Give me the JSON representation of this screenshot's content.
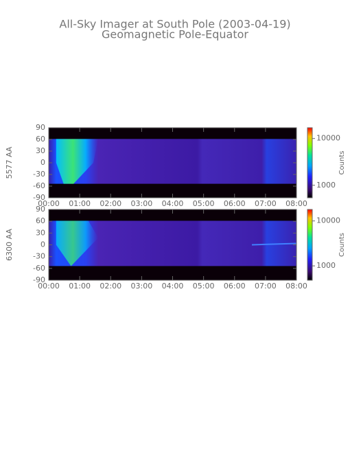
{
  "title": "All-Sky Imager at South Pole (2003-04-19)",
  "subtitle": "Geomagnetic Pole-Equator",
  "chart_data": [
    {
      "type": "heatmap",
      "ylabel": "5577 AA",
      "xlim": [
        0,
        8
      ],
      "xticks": [
        {
          "value": 0,
          "label": "00:00"
        },
        {
          "value": 1,
          "label": "01:00"
        },
        {
          "value": 2,
          "label": "02:00"
        },
        {
          "value": 3,
          "label": "03:00"
        },
        {
          "value": 4,
          "label": "04:00"
        },
        {
          "value": 5,
          "label": "05:00"
        },
        {
          "value": 6,
          "label": "06:00"
        },
        {
          "value": 7,
          "label": "07:00"
        },
        {
          "value": 8,
          "label": "08:00"
        }
      ],
      "ylim": [
        -90,
        90
      ],
      "yticks": [
        -90,
        -60,
        -30,
        0,
        30,
        60,
        90
      ],
      "colorbar": {
        "label": "Counts",
        "log": true,
        "lim": [
          540,
          17000
        ],
        "ticks": [
          1000,
          10000
        ]
      }
    },
    {
      "type": "heatmap",
      "ylabel": "6300 AA",
      "xlim": [
        0,
        8
      ],
      "xticks": [
        {
          "value": 0,
          "label": "00:00"
        },
        {
          "value": 1,
          "label": "01:00"
        },
        {
          "value": 2,
          "label": "02:00"
        },
        {
          "value": 3,
          "label": "03:00"
        },
        {
          "value": 4,
          "label": "04:00"
        },
        {
          "value": 5,
          "label": "05:00"
        },
        {
          "value": 6,
          "label": "06:00"
        },
        {
          "value": 7,
          "label": "07:00"
        },
        {
          "value": 8,
          "label": "08:00"
        }
      ],
      "ylim": [
        -90,
        90
      ],
      "yticks": [
        -90,
        -60,
        -30,
        0,
        30,
        60,
        90
      ],
      "colorbar": {
        "label": "Counts",
        "log": true,
        "lim": [
          480,
          18000
        ],
        "ticks": [
          1000,
          10000
        ]
      }
    }
  ]
}
